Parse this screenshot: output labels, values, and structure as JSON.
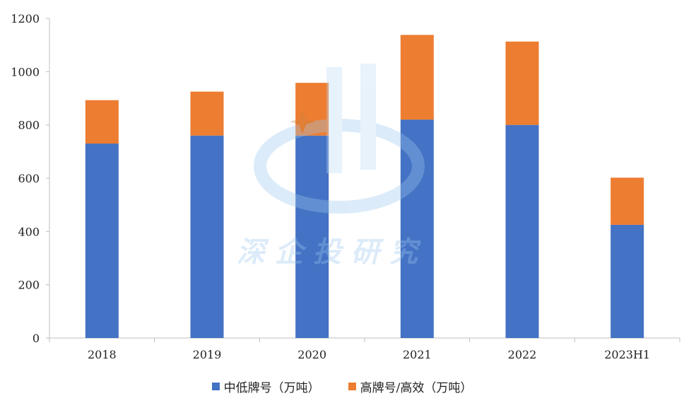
{
  "chart_data": {
    "type": "bar",
    "stacked": true,
    "categories": [
      "2018",
      "2019",
      "2020",
      "2021",
      "2022",
      "2023H1"
    ],
    "series": [
      {
        "name": "中低牌号（万吨）",
        "color": "#4472C4",
        "values": [
          730,
          760,
          760,
          820,
          800,
          425
        ]
      },
      {
        "name": "高牌号/高效（万吨）",
        "color": "#ED7D31",
        "values": [
          163,
          165,
          198,
          318,
          313,
          177
        ]
      }
    ],
    "ylim": [
      0,
      1200
    ],
    "yticks": [
      0,
      200,
      400,
      600,
      800,
      1000,
      1200
    ],
    "grid": false,
    "legend_position": "bottom"
  },
  "watermark": {
    "text": "深企投研究"
  }
}
